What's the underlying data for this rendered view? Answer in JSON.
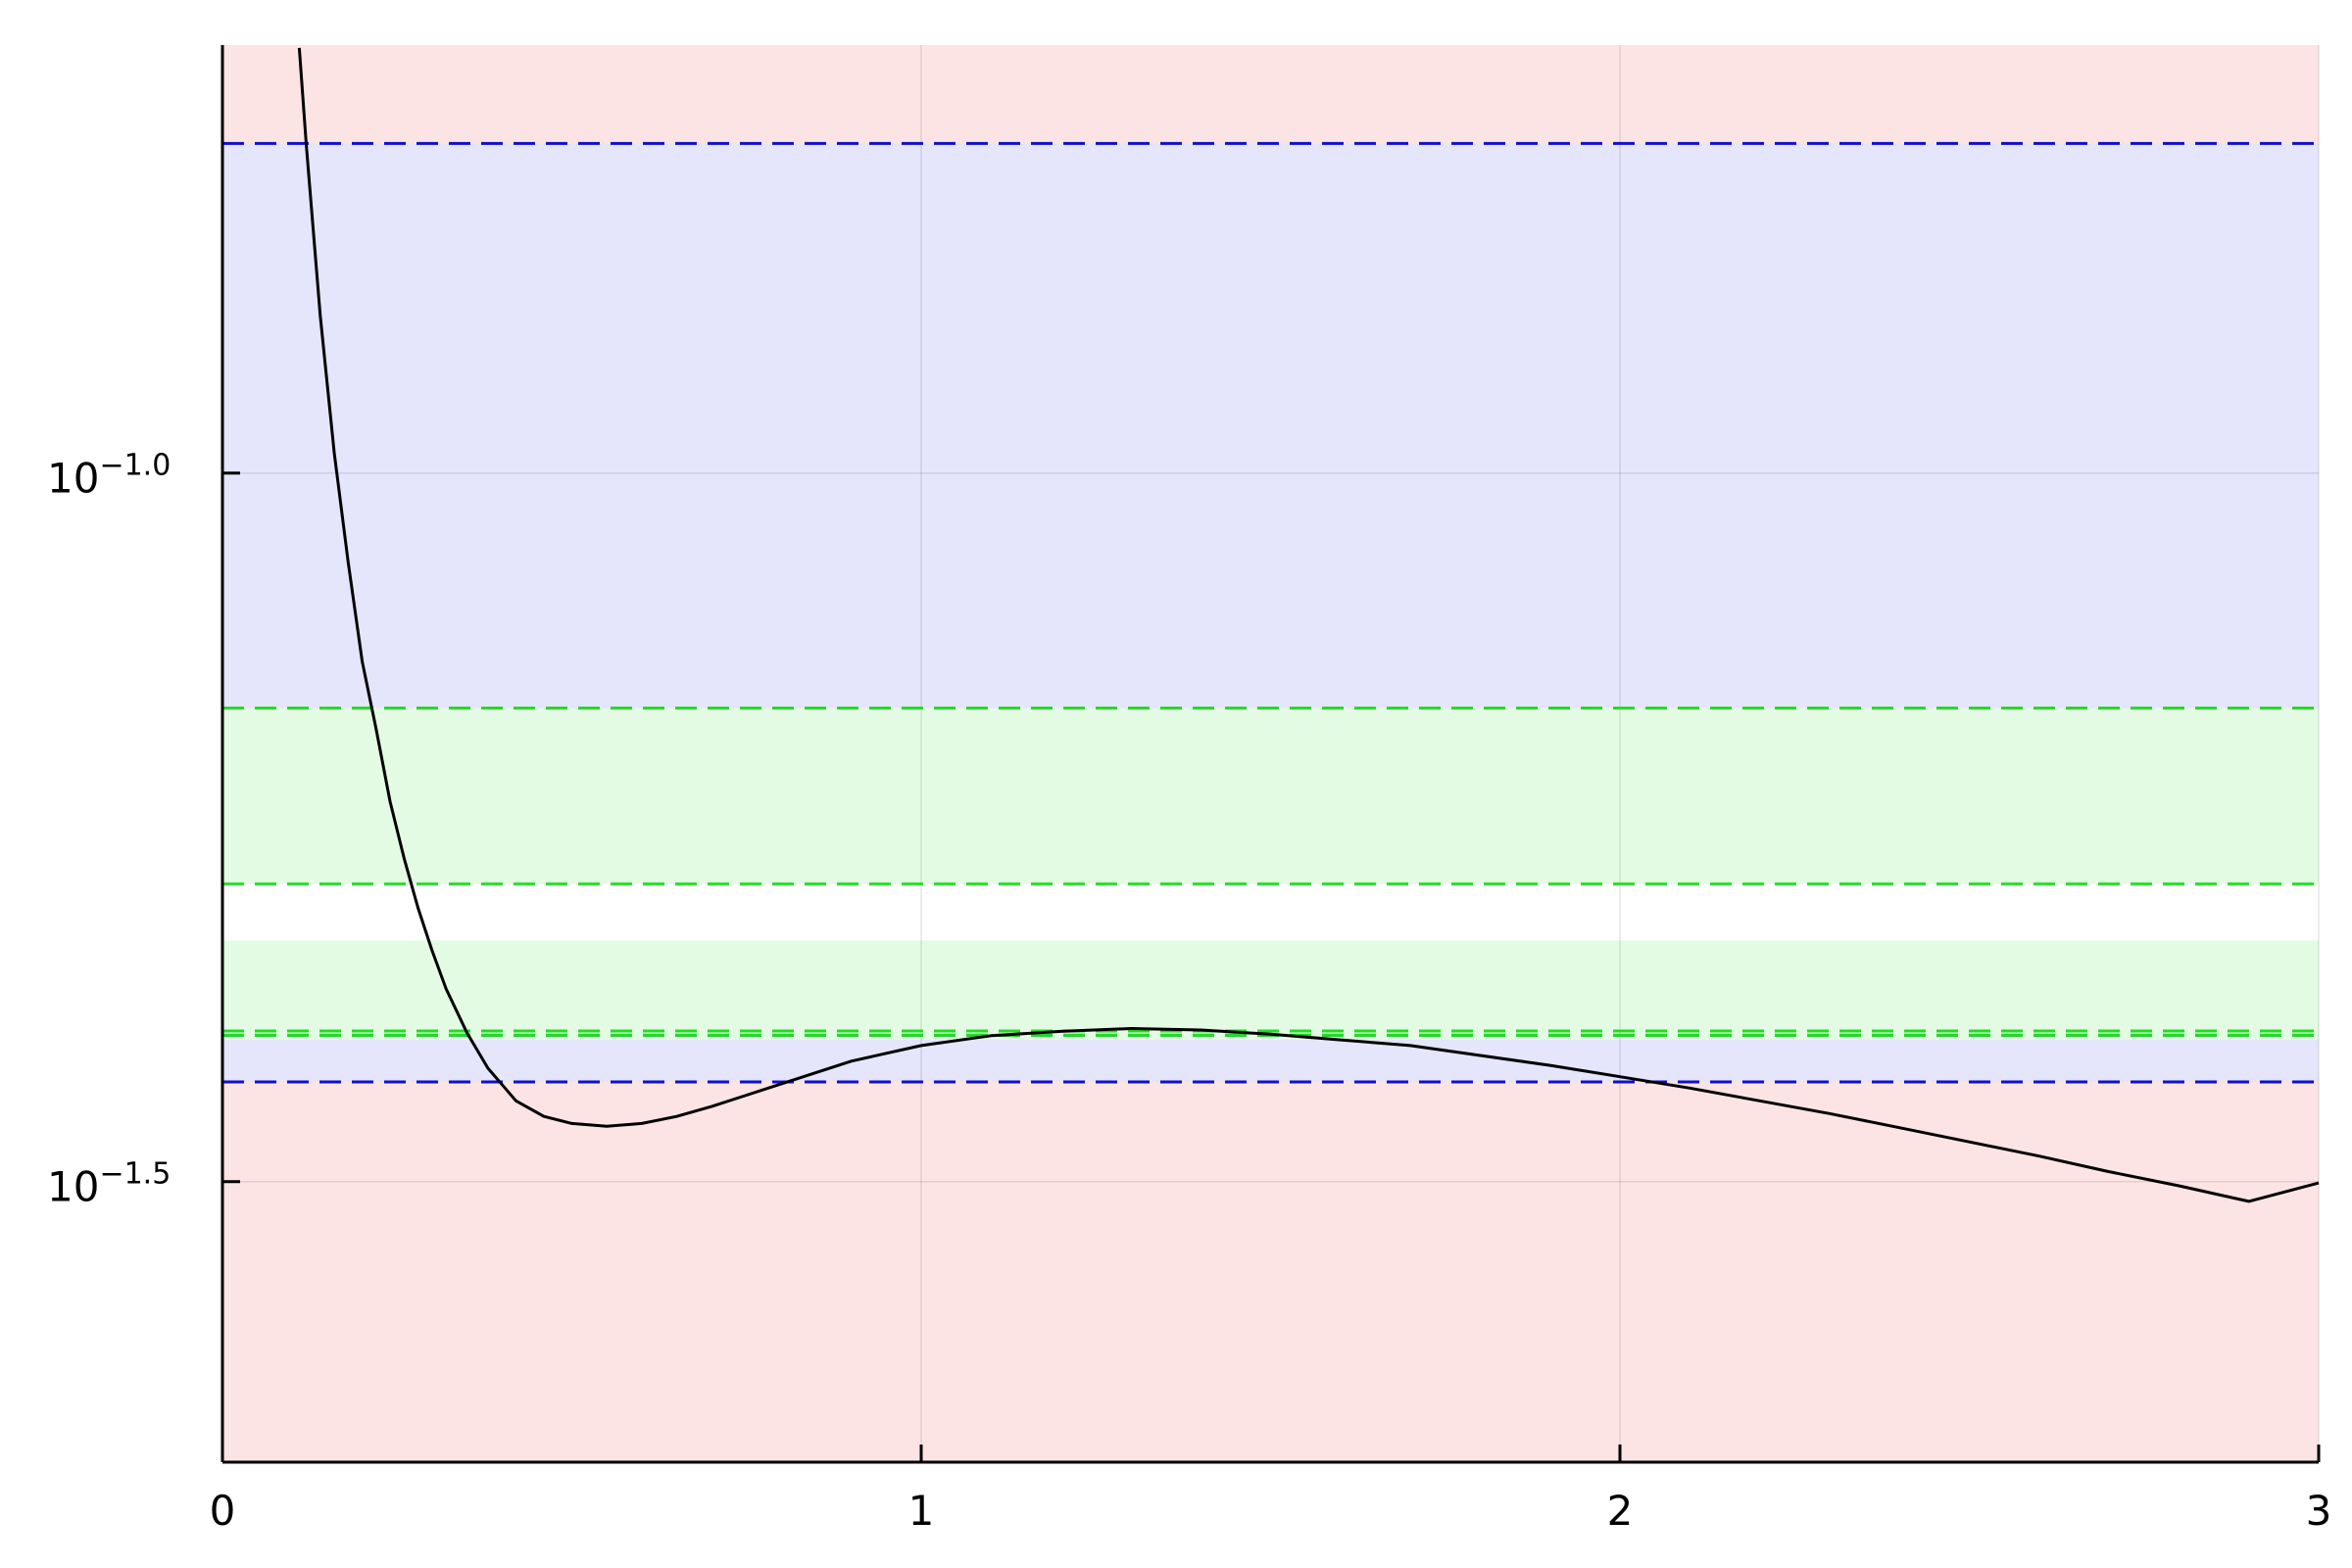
{
  "chart_data": {
    "type": "line",
    "title": "",
    "xlabel": "",
    "ylabel": "",
    "xlim": [
      0,
      3
    ],
    "ylim_log10": [
      -1.698,
      -0.698
    ],
    "yscale": "log10",
    "grid": true,
    "legend": "none",
    "x_ticks": [
      {
        "value": 0,
        "label": "0"
      },
      {
        "value": 1,
        "label": "1"
      },
      {
        "value": 2,
        "label": "2"
      },
      {
        "value": 3,
        "label": "3"
      }
    ],
    "y_ticks": [
      {
        "log10": -1.0,
        "base": "10",
        "exp": "−1.0"
      },
      {
        "log10": -1.5,
        "base": "10",
        "exp": "−1.5"
      }
    ],
    "bands": [
      {
        "name": "red-region",
        "from_log10": -1.698,
        "to_log10": -0.698,
        "color": "#fde4e4"
      },
      {
        "name": "blue-band",
        "from_log10": -1.4297,
        "to_log10": -0.7674,
        "color": "#e5e5fc"
      },
      {
        "name": "green-band",
        "from_log10": -1.4,
        "to_log10": -1.1658,
        "color": "#e3fbe3"
      },
      {
        "name": "white-gap",
        "from_log10": -1.3297,
        "to_log10": -1.29,
        "color": "#ffffff"
      }
    ],
    "hlines": [
      {
        "log10": -0.7674,
        "color": "#1010d0",
        "style": "dashed"
      },
      {
        "log10": -1.1658,
        "color": "#1010d0",
        "style": "dashed"
      },
      {
        "log10": -1.3967,
        "color": "#1010d0",
        "style": "dashed"
      },
      {
        "log10": -1.4297,
        "color": "#1010d0",
        "style": "dashed"
      },
      {
        "log10": -1.1658,
        "color": "#22dd22",
        "style": "dashed"
      },
      {
        "log10": -1.29,
        "color": "#22dd22",
        "style": "dashed"
      },
      {
        "log10": -1.3937,
        "color": "#22dd22",
        "style": "dashed"
      },
      {
        "log10": -1.3967,
        "color": "#22dd22",
        "style": "dashed"
      }
    ],
    "series": [
      {
        "color": "#000000",
        "points": [
          [
            0.11,
            -0.7
          ],
          [
            0.12,
            -0.769
          ],
          [
            0.14,
            -0.889
          ],
          [
            0.16,
            -0.986
          ],
          [
            0.18,
            -1.063
          ],
          [
            0.2,
            -1.133
          ],
          [
            0.22,
            -1.181
          ],
          [
            0.24,
            -1.232
          ],
          [
            0.26,
            -1.272
          ],
          [
            0.28,
            -1.307
          ],
          [
            0.3,
            -1.337
          ],
          [
            0.32,
            -1.364
          ],
          [
            0.35,
            -1.395
          ],
          [
            0.38,
            -1.42
          ],
          [
            0.42,
            -1.443
          ],
          [
            0.46,
            -1.454
          ],
          [
            0.5,
            -1.459
          ],
          [
            0.55,
            -1.461
          ],
          [
            0.6,
            -1.459
          ],
          [
            0.65,
            -1.454
          ],
          [
            0.7,
            -1.447
          ],
          [
            0.75,
            -1.439
          ],
          [
            0.8,
            -1.431
          ],
          [
            0.9,
            -1.415
          ],
          [
            1.0,
            -1.404
          ],
          [
            1.1,
            -1.397
          ],
          [
            1.2,
            -1.394
          ],
          [
            1.3,
            -1.392
          ],
          [
            1.4,
            -1.393
          ],
          [
            1.5,
            -1.396
          ],
          [
            1.6,
            -1.4
          ],
          [
            1.7,
            -1.404
          ],
          [
            1.8,
            -1.411
          ],
          [
            1.9,
            -1.418
          ],
          [
            2.0,
            -1.426
          ],
          [
            2.1,
            -1.434
          ],
          [
            2.2,
            -1.443
          ],
          [
            2.3,
            -1.452
          ],
          [
            2.4,
            -1.462
          ],
          [
            2.5,
            -1.472
          ],
          [
            2.6,
            -1.482
          ],
          [
            2.7,
            -1.493
          ],
          [
            2.8,
            -1.503
          ],
          [
            2.9,
            -1.514
          ],
          [
            3.0,
            -1.501
          ]
        ]
      }
    ]
  }
}
